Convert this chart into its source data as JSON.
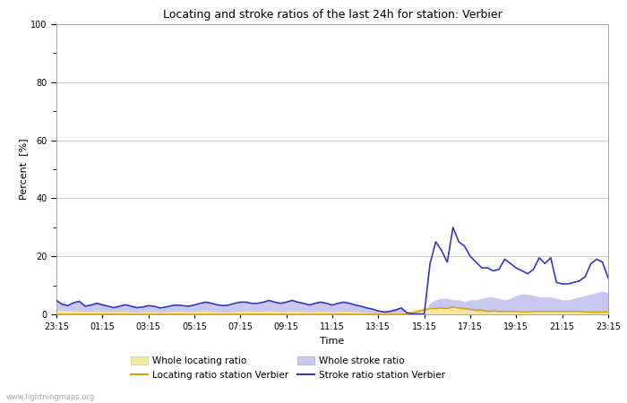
{
  "title": "Locating and stroke ratios of the last 24h for station: Verbier",
  "xlabel": "Time",
  "ylabel": "Percent  [%]",
  "ylim": [
    0,
    100
  ],
  "yticks": [
    0,
    20,
    40,
    60,
    80,
    100
  ],
  "xtick_labels": [
    "23:15",
    "01:15",
    "03:15",
    "05:15",
    "07:15",
    "09:15",
    "11:15",
    "13:15",
    "15:15",
    "17:15",
    "19:15",
    "21:15",
    "23:15"
  ],
  "background_color": "#ffffff",
  "plot_bg_color": "#ffffff",
  "watermark": "www.lightningmaps.org",
  "whole_locating_color": "#f5e6a0",
  "whole_stroke_color": "#c8c8f0",
  "locating_station_color": "#d4a000",
  "stroke_station_color": "#3838c0",
  "n_points": 97,
  "whole_locating_ratio": [
    1.5,
    1.4,
    1.3,
    1.2,
    1.1,
    1.0,
    1.1,
    1.2,
    1.0,
    0.9,
    1.0,
    1.1,
    1.0,
    0.9,
    0.8,
    0.9,
    1.0,
    0.9,
    0.8,
    0.9,
    1.0,
    1.1,
    1.0,
    0.9,
    1.0,
    1.1,
    1.2,
    1.0,
    0.9,
    0.8,
    0.9,
    1.0,
    1.1,
    1.2,
    1.1,
    1.0,
    1.1,
    1.2,
    1.1,
    1.0,
    1.1,
    1.2,
    1.1,
    1.0,
    0.9,
    1.0,
    1.1,
    1.0,
    0.9,
    1.0,
    1.1,
    1.0,
    0.9,
    0.8,
    0.7,
    0.6,
    0.5,
    0.4,
    0.5,
    0.6,
    0.7,
    1.0,
    1.5,
    2.0,
    2.5,
    2.5,
    2.0,
    2.0,
    2.0,
    2.5,
    2.0,
    1.5,
    1.5,
    1.0,
    1.0,
    1.0,
    1.0,
    1.0,
    1.0,
    1.0,
    1.0,
    1.0,
    1.0,
    1.0,
    1.0,
    1.0,
    1.0,
    1.0,
    1.0,
    1.0,
    1.0,
    1.0,
    1.0,
    1.0,
    1.0,
    1.0,
    1.0
  ],
  "whole_stroke_ratio": [
    5.0,
    3.5,
    3.2,
    4.0,
    4.5,
    3.0,
    3.5,
    4.0,
    3.5,
    3.0,
    2.5,
    3.0,
    3.5,
    3.0,
    2.5,
    2.8,
    3.2,
    3.0,
    2.5,
    2.8,
    3.2,
    3.5,
    3.2,
    3.0,
    3.5,
    4.0,
    4.5,
    4.0,
    3.5,
    3.2,
    3.5,
    4.0,
    4.5,
    4.5,
    4.0,
    4.0,
    4.5,
    5.0,
    4.5,
    4.0,
    4.5,
    5.0,
    4.5,
    4.0,
    3.5,
    4.0,
    4.5,
    4.0,
    3.5,
    4.0,
    4.5,
    4.0,
    3.5,
    3.0,
    2.5,
    2.0,
    1.5,
    1.2,
    1.5,
    2.0,
    2.5,
    1.0,
    0.5,
    0.3,
    0.2,
    4.0,
    5.0,
    5.5,
    5.5,
    5.0,
    5.0,
    4.5,
    5.0,
    5.0,
    5.5,
    6.0,
    6.0,
    5.5,
    5.0,
    5.5,
    6.5,
    7.0,
    7.0,
    6.5,
    6.0,
    6.0,
    6.0,
    5.5,
    5.0,
    5.0,
    5.5,
    6.0,
    6.5,
    7.0,
    7.5,
    8.0,
    7.5
  ],
  "locating_station_ratio": [
    0.0,
    0.0,
    0.0,
    0.0,
    0.0,
    0.0,
    0.0,
    0.0,
    0.0,
    0.0,
    0.0,
    0.0,
    0.0,
    0.0,
    0.0,
    0.0,
    0.0,
    0.0,
    0.0,
    0.0,
    0.0,
    0.0,
    0.0,
    0.0,
    0.0,
    0.0,
    0.0,
    0.0,
    0.0,
    0.0,
    0.0,
    0.0,
    0.0,
    0.0,
    0.0,
    0.0,
    0.0,
    0.0,
    0.0,
    0.0,
    0.0,
    0.0,
    0.0,
    0.0,
    0.0,
    0.0,
    0.0,
    0.0,
    0.0,
    0.0,
    0.0,
    0.0,
    0.0,
    0.0,
    0.0,
    0.0,
    0.0,
    0.0,
    0.0,
    0.0,
    0.0,
    0.2,
    0.5,
    1.0,
    1.5,
    2.0,
    2.0,
    2.2,
    2.0,
    2.5,
    2.2,
    2.0,
    1.8,
    1.5,
    1.5,
    1.0,
    1.2,
    1.0,
    1.0,
    1.0,
    1.0,
    0.8,
    0.8,
    1.0,
    1.0,
    1.0,
    1.0,
    1.0,
    1.0,
    1.0,
    1.0,
    1.0,
    0.8,
    0.8,
    0.8,
    0.8,
    0.8
  ],
  "stroke_station_ratio": [
    4.8,
    3.5,
    3.0,
    4.0,
    4.5,
    2.8,
    3.2,
    3.8,
    3.3,
    2.8,
    2.3,
    2.8,
    3.3,
    2.8,
    2.3,
    2.5,
    3.0,
    2.8,
    2.2,
    2.5,
    3.0,
    3.2,
    3.0,
    2.8,
    3.2,
    3.8,
    4.2,
    3.8,
    3.3,
    3.0,
    3.2,
    3.8,
    4.2,
    4.2,
    3.8,
    3.8,
    4.2,
    4.8,
    4.2,
    3.8,
    4.2,
    4.8,
    4.2,
    3.8,
    3.2,
    3.8,
    4.2,
    3.8,
    3.2,
    3.8,
    4.2,
    3.8,
    3.2,
    2.8,
    2.2,
    1.8,
    1.2,
    0.8,
    1.0,
    1.5,
    2.2,
    0.5,
    0.2,
    0.1,
    0.1,
    17.5,
    25.0,
    22.0,
    18.0,
    30.0,
    25.0,
    23.5,
    20.0,
    18.0,
    16.0,
    16.0,
    15.0,
    15.5,
    19.0,
    17.5,
    16.0,
    15.0,
    14.0,
    15.5,
    19.5,
    17.5,
    19.5,
    11.0,
    10.5,
    10.5,
    11.0,
    11.5,
    13.0,
    17.5,
    19.0,
    18.0,
    12.5
  ]
}
